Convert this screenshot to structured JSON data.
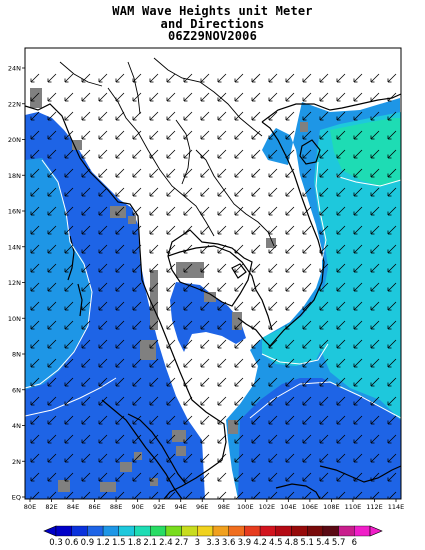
{
  "title": {
    "line1": "WAM Wave Heights unit Meter",
    "line2": "and Directions",
    "line3": "06Z29NOV2006"
  },
  "axes": {
    "x_ticks": [
      "80E",
      "82E",
      "84E",
      "86E",
      "88E",
      "90E",
      "92E",
      "94E",
      "96E",
      "98E",
      "100E",
      "102E",
      "104E",
      "106E",
      "108E",
      "110E",
      "112E",
      "114E"
    ],
    "y_ticks": [
      "EQ",
      "2N",
      "4N",
      "6N",
      "8N",
      "10N",
      "12N",
      "14N",
      "16N",
      "18N",
      "20N",
      "22N",
      "24N"
    ]
  },
  "colorbar": {
    "labels": [
      "0.3",
      "0.6",
      "0.9",
      "1.2",
      "1.5",
      "1.8",
      "2.1",
      "2.4",
      "2.7",
      "3",
      "3.3",
      "3.6",
      "3.9",
      "4.2",
      "4.5",
      "4.8",
      "5.1",
      "5.4",
      "5.7",
      "6"
    ],
    "colors": [
      "#0000c8",
      "#0a32dc",
      "#1e64e6",
      "#1e96e6",
      "#1ec8dc",
      "#1edcb4",
      "#28dc64",
      "#78dc1e",
      "#c8dc1e",
      "#f0d21e",
      "#f0a01e",
      "#f06e1e",
      "#e63c1e",
      "#d2141e",
      "#b40a14",
      "#960a0a",
      "#780a0a",
      "#5a0a14",
      "#c81e8c",
      "#f01ec8"
    ]
  },
  "colors": {
    "level_0_6": "#1e64e6",
    "level_0_9": "#0a32dc",
    "level_1_2": "#1e96e6",
    "level_1_5": "#1ec8dc",
    "land_grid": "#808080",
    "coast": "#000000"
  }
}
